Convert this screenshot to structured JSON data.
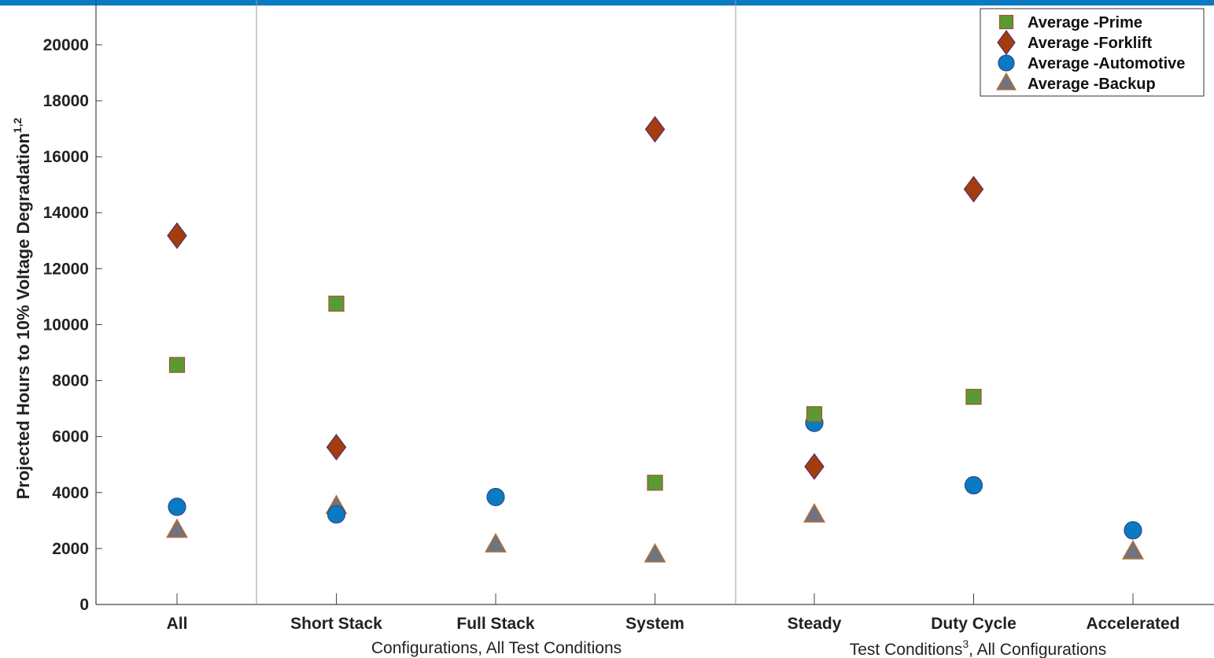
{
  "theme": {
    "top_bar_color": "#0a7bc2"
  },
  "chart_data": {
    "type": "scatter",
    "categories": [
      "All",
      "Short Stack",
      "Full Stack",
      "System",
      "Steady",
      "Duty Cycle",
      "Accelerated"
    ],
    "ylabel": "Projected Hours to 10% Voltage Degradation",
    "ylabel_superscript": "1,2",
    "ylim": [
      0,
      21600
    ],
    "yticks": [
      0,
      2000,
      4000,
      6000,
      8000,
      10000,
      12000,
      14000,
      16000,
      18000,
      20000
    ],
    "groups": [
      {
        "label": "Configurations, All Test Conditions",
        "label_sup": "",
        "label_rest": ""
      },
      {
        "label": "Test Conditions",
        "label_sup": "3",
        "label_rest": ", All Configurations"
      }
    ],
    "legend_position": "top-right",
    "series": [
      {
        "name": "Average -Prime",
        "marker": "square",
        "color": "#5a9a34",
        "values": [
          8560,
          10750,
          null,
          4350,
          6800,
          7420,
          null
        ]
      },
      {
        "name": "Average -Forklift",
        "marker": "diamond",
        "color": "#a33e0c",
        "values": [
          13180,
          5620,
          null,
          16980,
          4930,
          14840,
          null
        ]
      },
      {
        "name": "Average -Automotive",
        "marker": "circle",
        "color": "#0a7bc2",
        "values": [
          3490,
          3220,
          3840,
          null,
          6490,
          4260,
          2650
        ]
      },
      {
        "name": "Average -Backup",
        "marker": "triangle",
        "color": "#6e7480",
        "values": [
          2650,
          3500,
          2130,
          1770,
          3200,
          null,
          1880
        ]
      }
    ]
  }
}
